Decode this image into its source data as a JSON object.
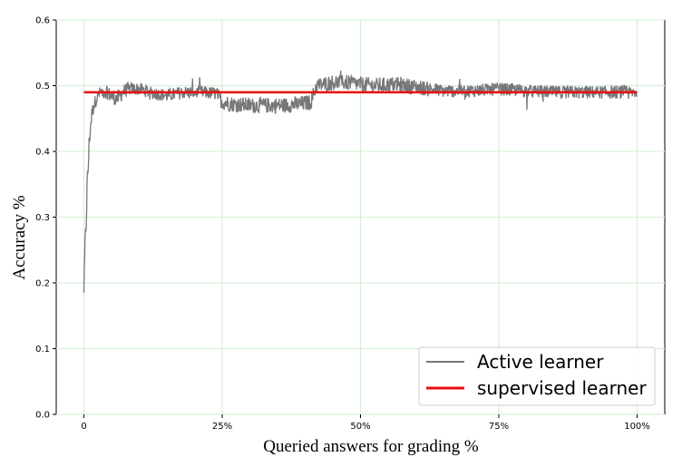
{
  "chart_data": {
    "type": "line",
    "title": "",
    "xlabel": "Queried answers for grading %",
    "ylabel": "Accuracy %",
    "xlim": [
      -5,
      105
    ],
    "ylim": [
      0,
      0.6
    ],
    "grid": true,
    "x_ticks": [
      {
        "value": 0,
        "label": "0"
      },
      {
        "value": 25,
        "label": "25%"
      },
      {
        "value": 50,
        "label": "50%"
      },
      {
        "value": 75,
        "label": "75%"
      },
      {
        "value": 100,
        "label": "100%"
      }
    ],
    "y_ticks": [
      {
        "value": 0.0,
        "label": "0.0"
      },
      {
        "value": 0.1,
        "label": "0.1"
      },
      {
        "value": 0.2,
        "label": "0.2"
      },
      {
        "value": 0.3,
        "label": "0.3"
      },
      {
        "value": 0.4,
        "label": "0.4"
      },
      {
        "value": 0.5,
        "label": "0.5"
      },
      {
        "value": 0.6,
        "label": "0.6"
      }
    ],
    "legend_position": "lower-right",
    "series": [
      {
        "name": "Active learner",
        "color": "#777777",
        "style": "noisy",
        "x": [
          0,
          0.2,
          0.4,
          0.6,
          0.8,
          1.0,
          1.2,
          1.5,
          1.8,
          2.2,
          2.6,
          3,
          4,
          5,
          6,
          7,
          8,
          10,
          12,
          15,
          18,
          21,
          24,
          25,
          27,
          30,
          33,
          36,
          39,
          41,
          42,
          45,
          48,
          50,
          53,
          56,
          60,
          65,
          70,
          75,
          80,
          85,
          90,
          95,
          100
        ],
        "values": [
          0.185,
          0.26,
          0.29,
          0.35,
          0.38,
          0.42,
          0.44,
          0.46,
          0.47,
          0.48,
          0.485,
          0.49,
          0.49,
          0.485,
          0.48,
          0.49,
          0.495,
          0.495,
          0.49,
          0.485,
          0.49,
          0.49,
          0.488,
          0.475,
          0.472,
          0.47,
          0.47,
          0.47,
          0.472,
          0.475,
          0.5,
          0.505,
          0.505,
          0.502,
          0.5,
          0.502,
          0.498,
          0.492,
          0.492,
          0.495,
          0.492,
          0.49,
          0.49,
          0.49,
          0.49
        ],
        "noise": [
          0.0,
          0.01,
          0.02,
          0.02,
          0.02,
          0.02,
          0.015,
          0.012,
          0.01,
          0.01,
          0.01,
          0.01,
          0.01,
          0.012,
          0.012,
          0.012,
          0.01,
          0.01,
          0.01,
          0.01,
          0.01,
          0.01,
          0.01,
          0.012,
          0.012,
          0.012,
          0.012,
          0.012,
          0.012,
          0.012,
          0.012,
          0.012,
          0.012,
          0.012,
          0.012,
          0.012,
          0.012,
          0.01,
          0.01,
          0.01,
          0.01,
          0.01,
          0.01,
          0.01,
          0.01
        ]
      },
      {
        "name": "supervised learner",
        "color": "#e8100e",
        "style": "flat",
        "x": [
          0,
          100
        ],
        "values": [
          0.49,
          0.49
        ]
      }
    ]
  }
}
